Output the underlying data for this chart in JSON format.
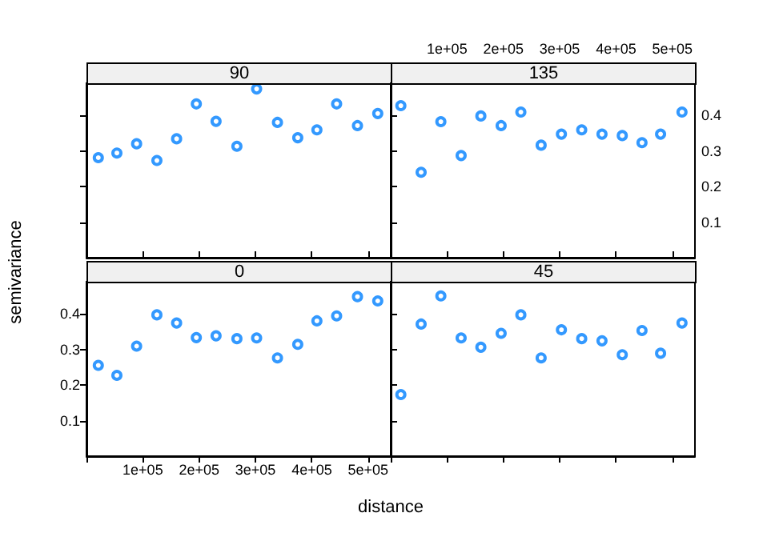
{
  "chart_data": [
    {
      "type": "scatter",
      "title": "90",
      "x": [
        21000,
        54000,
        89000,
        125000,
        160000,
        195000,
        230000,
        267000,
        302000,
        339000,
        375000,
        409000,
        444000,
        481000,
        517000
      ],
      "series": [
        {
          "color": "#0080ff",
          "values": [
            0.281,
            0.294,
            0.32,
            0.273,
            0.334,
            0.432,
            0.383,
            0.313,
            0.474,
            0.38,
            0.337,
            0.359,
            0.432,
            0.371,
            0.405
          ]
        }
      ],
      "xlim": [
        0,
        540000
      ],
      "xticks": [
        0,
        100000,
        200000,
        300000,
        400000,
        500000
      ],
      "ylim": [
        0,
        0.49
      ],
      "yticks": [
        0.1,
        0.2,
        0.3,
        0.4
      ],
      "tick_labels": false,
      "marker": "circle",
      "grid": false
    },
    {
      "type": "scatter",
      "title": "135",
      "x": [
        18000,
        54000,
        89000,
        125000,
        160000,
        196000,
        231000,
        267000,
        303000,
        339000,
        375000,
        411000,
        446000,
        479000,
        517000
      ],
      "series": [
        {
          "color": "#0080ff",
          "values": [
            0.427,
            0.24,
            0.382,
            0.287,
            0.398,
            0.371,
            0.409,
            0.316,
            0.347,
            0.359,
            0.347,
            0.343,
            0.323,
            0.347,
            0.409
          ]
        }
      ],
      "xlim": [
        0,
        540000
      ],
      "xticks": [
        {
          "value": 0,
          "label": null
        },
        {
          "value": 100000,
          "label": "1e+05"
        },
        {
          "value": 200000,
          "label": "2e+05"
        },
        {
          "value": 300000,
          "label": "3e+05"
        },
        {
          "value": 400000,
          "label": "4e+05"
        },
        {
          "value": 500000,
          "label": "5e+05"
        }
      ],
      "ylim": [
        0,
        0.49
      ],
      "yticks": [
        0.1,
        0.2,
        0.3,
        0.4
      ],
      "marker": "circle",
      "grid": false
    },
    {
      "type": "scatter",
      "title": "0",
      "xlabel": "distance",
      "ylabel": "semivariance",
      "x": [
        21000,
        54000,
        89000,
        125000,
        160000,
        195000,
        230000,
        267000,
        302000,
        339000,
        375000,
        409000,
        444000,
        481000,
        517000
      ],
      "series": [
        {
          "color": "#0080ff",
          "values": [
            0.255,
            0.227,
            0.309,
            0.397,
            0.374,
            0.333,
            0.338,
            0.33,
            0.332,
            0.276,
            0.314,
            0.38,
            0.394,
            0.448,
            0.436
          ]
        }
      ],
      "xlim": [
        0,
        540000
      ],
      "xticks": [
        {
          "value": 0,
          "label": null
        },
        {
          "value": 100000,
          "label": "1e+05"
        },
        {
          "value": 200000,
          "label": "2e+05"
        },
        {
          "value": 300000,
          "label": "3e+05"
        },
        {
          "value": 400000,
          "label": "4e+05"
        },
        {
          "value": 500000,
          "label": "5e+05"
        }
      ],
      "ylim": [
        0,
        0.49
      ],
      "yticks": [
        0.1,
        0.2,
        0.3,
        0.4
      ],
      "marker": "circle",
      "grid": false
    },
    {
      "type": "scatter",
      "title": "45",
      "x": [
        18000,
        54000,
        89000,
        125000,
        160000,
        196000,
        231000,
        267000,
        303000,
        339000,
        375000,
        411000,
        446000,
        479000,
        517000
      ],
      "series": [
        {
          "color": "#0080ff",
          "values": [
            0.173,
            0.371,
            0.45,
            0.332,
            0.306,
            0.345,
            0.397,
            0.276,
            0.355,
            0.33,
            0.324,
            0.285,
            0.353,
            0.289,
            0.374
          ]
        }
      ],
      "xlim": [
        0,
        540000
      ],
      "xticks": [
        0,
        100000,
        200000,
        300000,
        400000,
        500000
      ],
      "ylim": [
        0,
        0.49
      ],
      "yticks": [
        0.1,
        0.2,
        0.3,
        0.4
      ],
      "tick_labels": false,
      "marker": "circle",
      "grid": false
    }
  ]
}
